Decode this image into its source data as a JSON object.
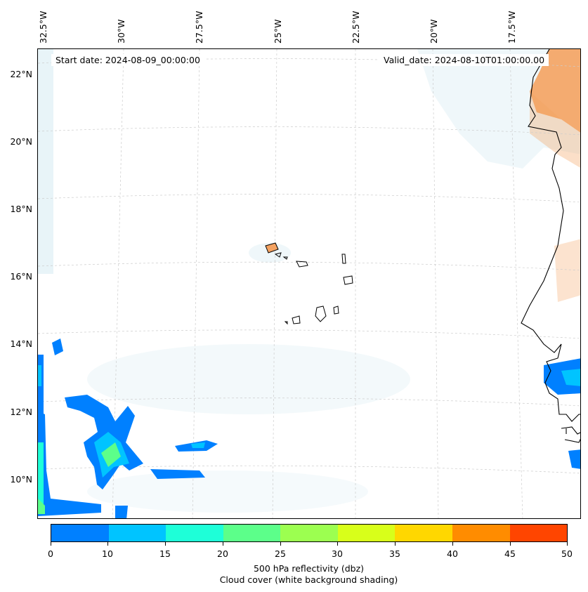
{
  "map": {
    "lon_labels": [
      "32.5°W",
      "30°W",
      "27.5°W",
      "25°W",
      "22.5°W",
      "20°W",
      "17.5°W"
    ],
    "lat_labels": [
      "22°N",
      "20°N",
      "18°N",
      "16°N",
      "14°N",
      "12°N",
      "10°N"
    ],
    "start_date": "Start date: 2024-08-09_00:00:00",
    "valid_date": "Valid_date: 2024-08-10T01:00:00.00"
  },
  "colorbar": {
    "tick_labels": [
      "0",
      "10",
      "15",
      "20",
      "25",
      "30",
      "35",
      "40",
      "45",
      "50"
    ],
    "colors": [
      "#0080ff",
      "#00c4ff",
      "#1effd8",
      "#5cff8a",
      "#9cff50",
      "#d8ff1a",
      "#ffd700",
      "#ff8c00",
      "#ff4500"
    ],
    "label_line1": "500 hPa reflectivity (dbz)",
    "label_line2": "Cloud cover (white background shading)"
  },
  "colors": {
    "land_orange": "#f4a261",
    "cloud_shade": "#d6ebf2",
    "coast": "#000000",
    "grid": "#cccccc"
  }
}
